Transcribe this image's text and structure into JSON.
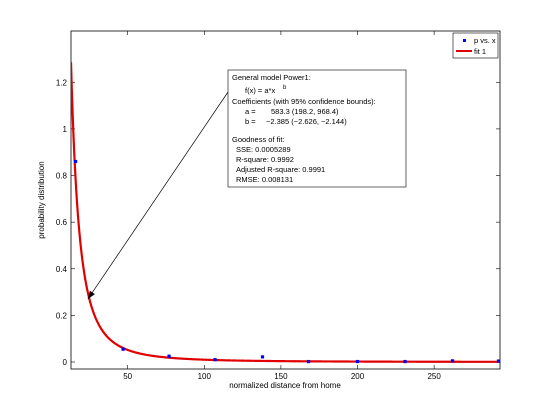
{
  "chart_data": {
    "type": "scatter",
    "xlabel": "normalized distance from home",
    "ylabel": "probability distribution",
    "xlim": [
      13,
      293
    ],
    "ylim": [
      -0.03,
      1.42
    ],
    "xticks": [
      "50",
      "100",
      "150",
      "200",
      "250"
    ],
    "xtick_values": [
      50,
      100,
      150,
      200,
      250
    ],
    "yticks": [
      "0",
      "0.2",
      "0.4",
      "0.6",
      "0.8",
      "1",
      "1.2"
    ],
    "ytick_values": [
      0,
      0.2,
      0.4,
      0.6,
      0.8,
      1.0,
      1.2
    ],
    "series": [
      {
        "name": "p vs. x",
        "kind": "points",
        "color": "#0000ff",
        "x": [
          16,
          47,
          77,
          107,
          138,
          168,
          200,
          231,
          262,
          292
        ],
        "y": [
          0.86,
          0.055,
          0.025,
          0.01,
          0.022,
          0.002,
          0.002,
          0.002,
          0.005,
          0.004
        ]
      },
      {
        "name": "fit 1",
        "kind": "curve",
        "color": "#e00000",
        "model": {
          "a": 583.3,
          "b": -2.385
        }
      }
    ],
    "legend_position": "top-right",
    "annotation": {
      "lines": [
        "General model Power1:",
        "f(x) = a*x",
        "b",
        "Coefficients (with 95% confidence bounds):",
        "a =",
        "583.3  (198.2, 968.4)",
        "b =",
        "−2.385  (−2.626, −2.144)",
        "Goodness of fit:",
        "SSE: 0.0005289",
        "R-square: 0.9992",
        "Adjusted R-square: 0.9991",
        "RMSE: 0.008131"
      ],
      "arrow_target": {
        "x": 24,
        "y": 0.27
      }
    }
  }
}
